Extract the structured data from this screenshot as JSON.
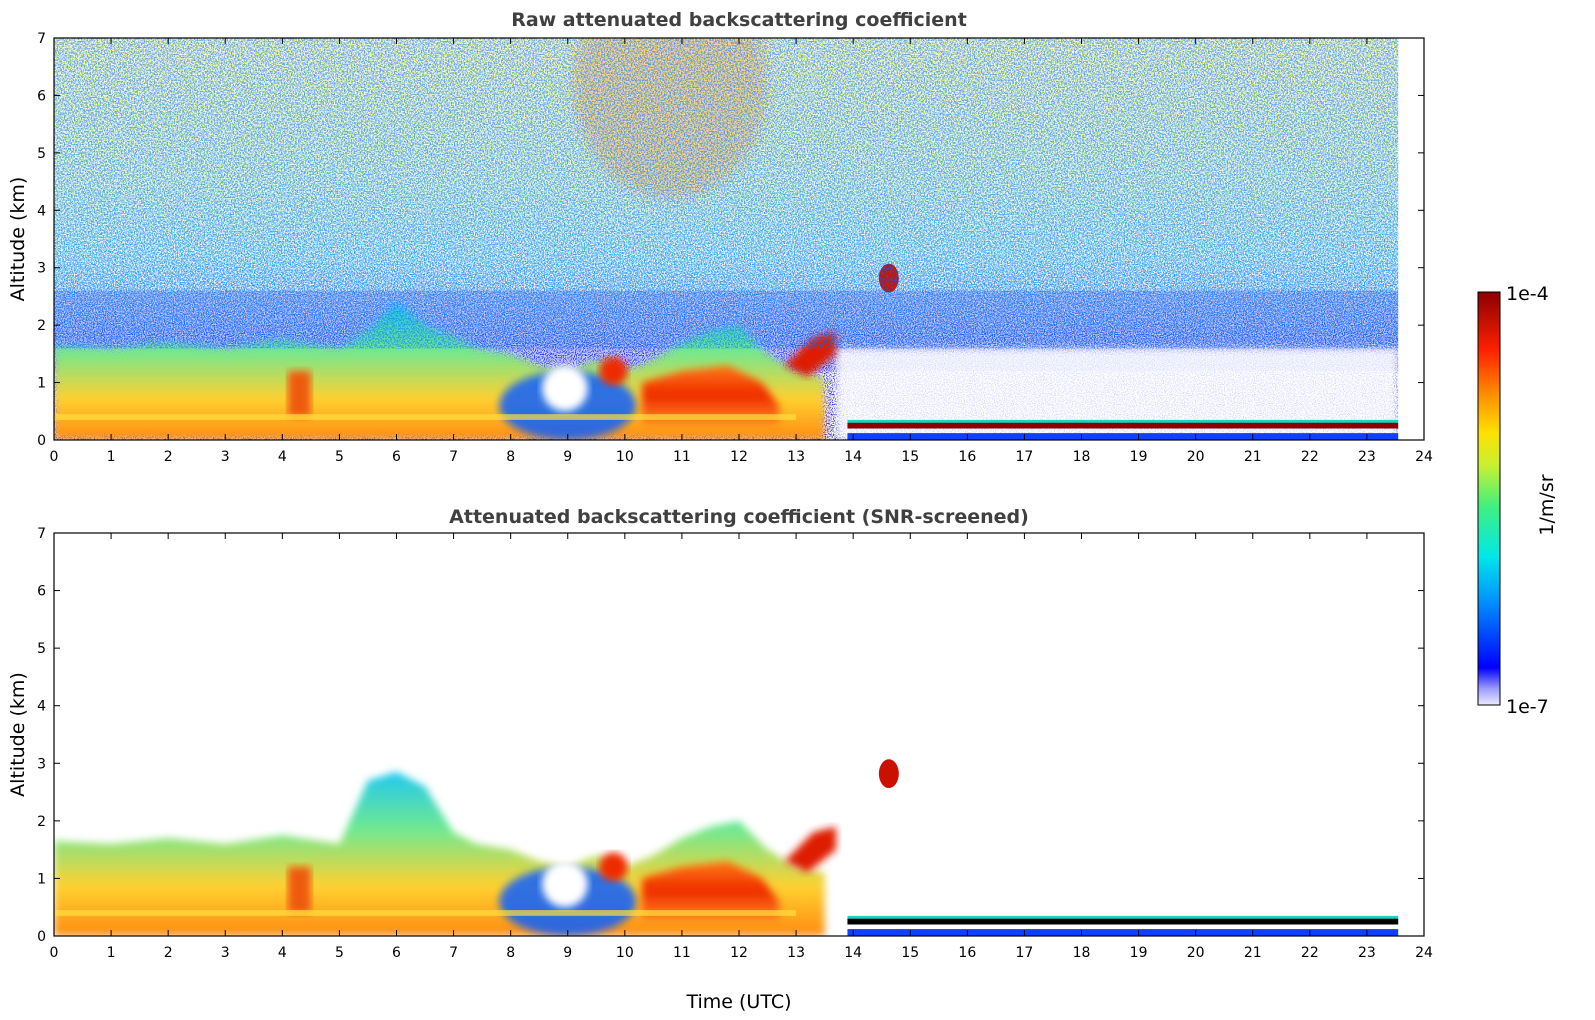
{
  "chart_data": [
    {
      "type": "heatmap",
      "title": "Raw attenuated backscattering coefficient",
      "xlabel": "",
      "ylabel": "Altitude (km)",
      "xlim": [
        0,
        24
      ],
      "ylim": [
        0,
        7
      ],
      "xticks": [
        "0",
        "1",
        "2",
        "3",
        "4",
        "5",
        "6",
        "7",
        "8",
        "9",
        "10",
        "11",
        "12",
        "13",
        "14",
        "15",
        "16",
        "17",
        "18",
        "19",
        "20",
        "21",
        "22",
        "23",
        "24"
      ],
      "yticks": [
        "0",
        "1",
        "2",
        "3",
        "4",
        "5",
        "6",
        "7"
      ],
      "data_extent_hours": [
        0,
        23.55
      ],
      "features": [
        {
          "label": "boundary-layer aerosol",
          "t_start": 0,
          "t_end": 13.5,
          "alt_top_km": 1.7,
          "intensity": "high"
        },
        {
          "label": "high backscatter aerosol",
          "t_start": 10.3,
          "t_end": 12.7,
          "alt_top_km": 1.3,
          "intensity": "very high"
        },
        {
          "label": "elevated aerosol layer",
          "t_start": 12.7,
          "t_end": 13.7,
          "alt_top_km": 1.9,
          "intensity": "very high"
        },
        {
          "label": "small elevated layer",
          "t_start": 14.45,
          "t_end": 14.8,
          "alt_top_km": 2.95,
          "intensity": "very high"
        },
        {
          "label": "low layer",
          "t_start": 13.9,
          "t_end": 23.55,
          "alt_top_km": 0.35,
          "intensity": "saturated"
        }
      ]
    },
    {
      "type": "heatmap",
      "title": "Attenuated backscattering coefficient (SNR-screened)",
      "xlabel": "Time (UTC)",
      "ylabel": "Altitude (km)",
      "xlim": [
        0,
        24
      ],
      "ylim": [
        0,
        7
      ],
      "xticks": [
        "0",
        "1",
        "2",
        "3",
        "4",
        "5",
        "6",
        "7",
        "8",
        "9",
        "10",
        "11",
        "12",
        "13",
        "14",
        "15",
        "16",
        "17",
        "18",
        "19",
        "20",
        "21",
        "22",
        "23",
        "24"
      ],
      "yticks": [
        "0",
        "1",
        "2",
        "3",
        "4",
        "5",
        "6",
        "7"
      ],
      "data_extent_hours": [
        0,
        23.55
      ],
      "features": [
        {
          "label": "boundary-layer aerosol",
          "t_start": 0,
          "t_end": 13.5,
          "alt_top_km": 1.7,
          "intensity": "high"
        },
        {
          "label": "residual layer plumes",
          "t_start": 5,
          "t_end": 7.5,
          "alt_top_km": 2.9,
          "intensity": "medium"
        },
        {
          "label": "high backscatter aerosol",
          "t_start": 10.3,
          "t_end": 12.7,
          "alt_top_km": 1.3,
          "intensity": "very high"
        },
        {
          "label": "small elevated layer",
          "t_start": 14.45,
          "t_end": 14.8,
          "alt_top_km": 2.95,
          "intensity": "very high"
        },
        {
          "label": "low layer",
          "t_start": 13.9,
          "t_end": 23.55,
          "alt_top_km": 0.35,
          "intensity": "saturated"
        }
      ]
    }
  ],
  "colorbar": {
    "max_label": "1e-4",
    "min_label": "1e-7",
    "unit_label": "1/m/sr",
    "scale": "log"
  },
  "colors": {
    "low": "#0000ff",
    "mid": "#ffff00",
    "high": "#8b0000",
    "saturated": "#000000"
  }
}
